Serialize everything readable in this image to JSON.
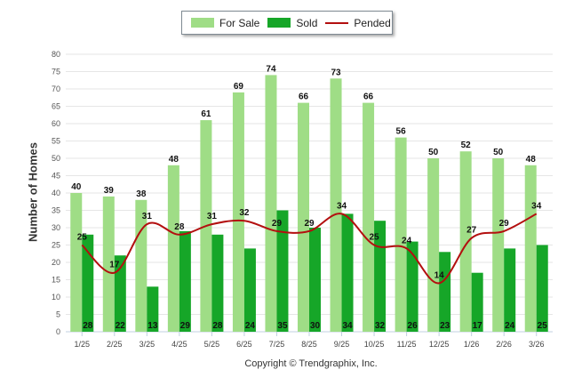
{
  "chart_data": {
    "type": "bar",
    "title": "",
    "xlabel": "",
    "ylabel": "Number of Homes",
    "ylim": [
      0,
      80
    ],
    "yticks": [
      0,
      5,
      10,
      15,
      20,
      25,
      30,
      35,
      40,
      45,
      50,
      55,
      60,
      65,
      70,
      75,
      80
    ],
    "grid": true,
    "legend_position": "top-center",
    "categories": [
      "1/25",
      "2/25",
      "3/25",
      "4/25",
      "5/25",
      "6/25",
      "7/25",
      "8/25",
      "9/25",
      "10/25",
      "11/25",
      "12/25",
      "1/26",
      "2/26",
      "3/26"
    ],
    "series": [
      {
        "name": "For Sale",
        "kind": "bar",
        "color": "#9fdd86",
        "values": [
          40,
          39,
          38,
          48,
          61,
          69,
          74,
          66,
          73,
          66,
          56,
          50,
          52,
          50,
          48
        ]
      },
      {
        "name": "Sold",
        "kind": "bar",
        "color": "#16a628",
        "values": [
          28,
          22,
          13,
          29,
          28,
          24,
          35,
          30,
          34,
          32,
          26,
          23,
          17,
          24,
          25
        ]
      },
      {
        "name": "Pended",
        "kind": "line",
        "color": "#b30f0f",
        "values": [
          25,
          17,
          31,
          28,
          31,
          32,
          29,
          29,
          34,
          25,
          24,
          14,
          27,
          29,
          34
        ]
      }
    ]
  },
  "footer": {
    "copyright": "Copyright © Trendgraphix, Inc."
  }
}
